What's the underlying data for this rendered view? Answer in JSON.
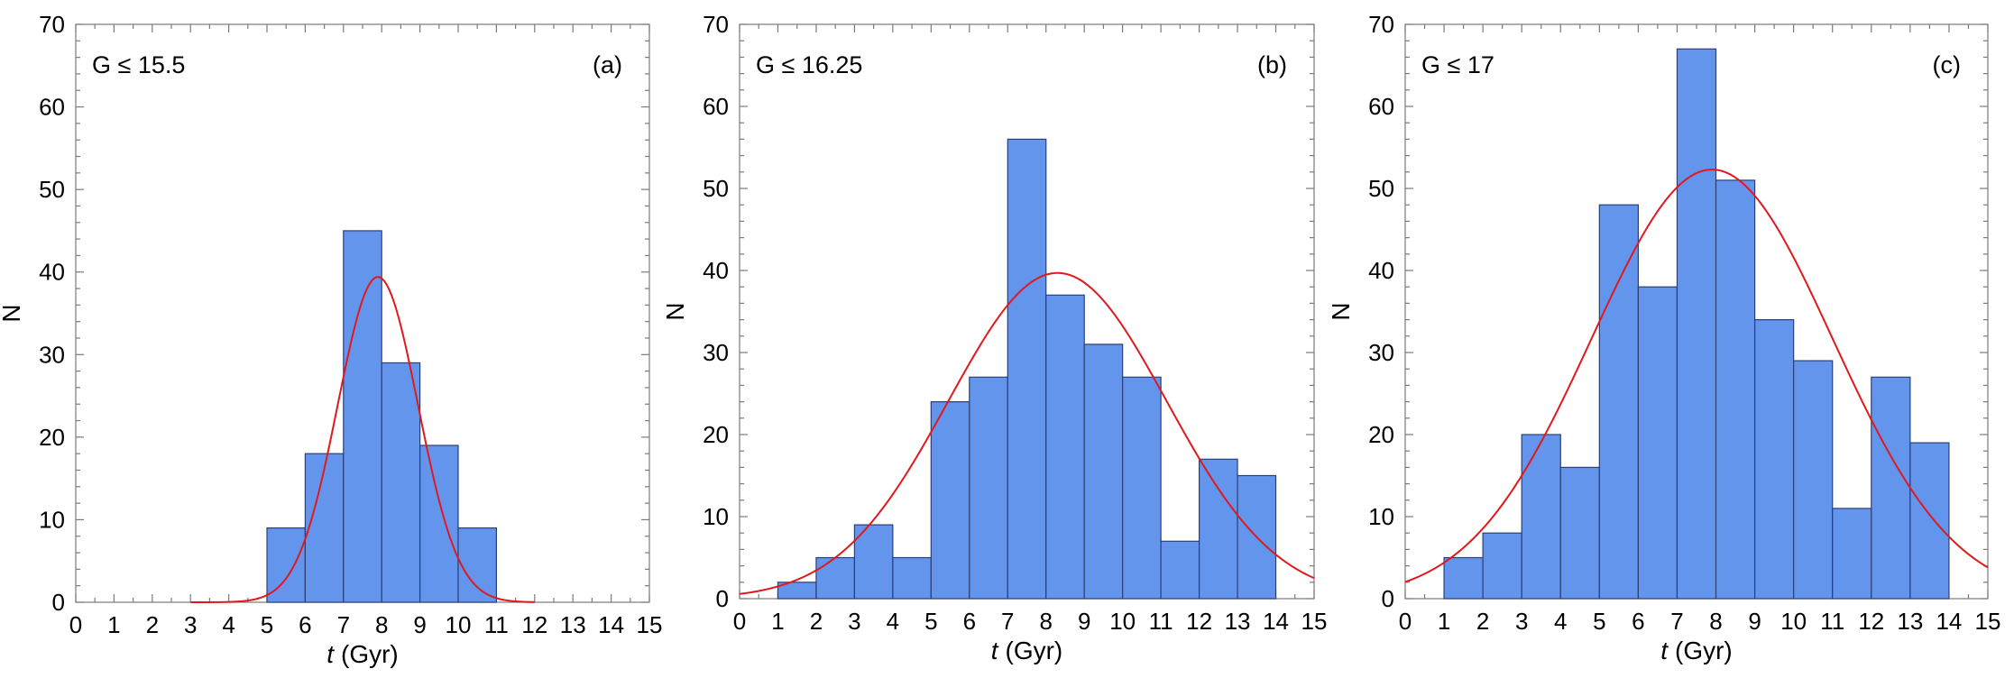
{
  "colors": {
    "bar_fill": "#6495ed",
    "fit_line": "#e0191c"
  },
  "chart_data": [
    {
      "type": "bar",
      "panel_label": "(a)",
      "condition": "G ≤ 15.5",
      "bin_edges": [
        5,
        6,
        7,
        8,
        9,
        10,
        11
      ],
      "values": [
        9,
        18,
        45,
        29,
        19,
        9
      ],
      "fit": {
        "type": "gaussian",
        "mean": 7.9,
        "sigma": 1.05,
        "peak": 39.4,
        "x_range": [
          3,
          12
        ]
      },
      "xlabel_italic": "t",
      "xlabel_unit": "(Gyr)",
      "ylabel": "N",
      "xlim": [
        0,
        15
      ],
      "ylim": [
        0,
        70
      ],
      "xticks": [
        "0",
        "1",
        "2",
        "3",
        "4",
        "5",
        "6",
        "7",
        "8",
        "9",
        "10",
        "11",
        "12",
        "13",
        "14",
        "15"
      ],
      "yticks": [
        "0",
        "10",
        "20",
        "30",
        "40",
        "50",
        "60",
        "70"
      ]
    },
    {
      "type": "bar",
      "panel_label": "(b)",
      "condition": "G ≤ 16.25",
      "bin_edges": [
        1,
        2,
        3,
        4,
        5,
        6,
        7,
        8,
        9,
        10,
        11,
        12,
        13,
        14
      ],
      "values": [
        2,
        5,
        9,
        5,
        24,
        27,
        56,
        37,
        31,
        27,
        7,
        17,
        15
      ],
      "fit": {
        "type": "gaussian",
        "mean": 8.3,
        "sigma": 2.85,
        "peak": 39.7,
        "x_range": [
          0,
          15
        ]
      },
      "xlabel_italic": "t",
      "xlabel_unit": "(Gyr)",
      "ylabel": "N",
      "xlim": [
        0,
        15
      ],
      "ylim": [
        0,
        70
      ],
      "xticks": [
        "0",
        "1",
        "2",
        "3",
        "4",
        "5",
        "6",
        "7",
        "8",
        "9",
        "10",
        "11",
        "12",
        "13",
        "14",
        "15"
      ],
      "yticks": [
        "0",
        "10",
        "20",
        "30",
        "40",
        "50",
        "60",
        "70"
      ]
    },
    {
      "type": "bar",
      "panel_label": "(c)",
      "condition": "G ≤ 17",
      "bin_edges": [
        1,
        2,
        3,
        4,
        5,
        6,
        7,
        8,
        9,
        10,
        11,
        12,
        13,
        14
      ],
      "values": [
        5,
        8,
        20,
        16,
        48,
        38,
        67,
        51,
        34,
        29,
        11,
        27,
        19
      ],
      "fit": {
        "type": "gaussian",
        "mean": 7.9,
        "sigma": 3.1,
        "peak": 52.3,
        "x_range": [
          0,
          15
        ]
      },
      "xlabel_italic": "t",
      "xlabel_unit": "(Gyr)",
      "ylabel": "N",
      "xlim": [
        0,
        15
      ],
      "ylim": [
        0,
        70
      ],
      "xticks": [
        "0",
        "1",
        "2",
        "3",
        "4",
        "5",
        "6",
        "7",
        "8",
        "9",
        "10",
        "11",
        "12",
        "13",
        "14",
        "15"
      ],
      "yticks": [
        "0",
        "10",
        "20",
        "30",
        "40",
        "50",
        "60",
        "70"
      ]
    }
  ]
}
